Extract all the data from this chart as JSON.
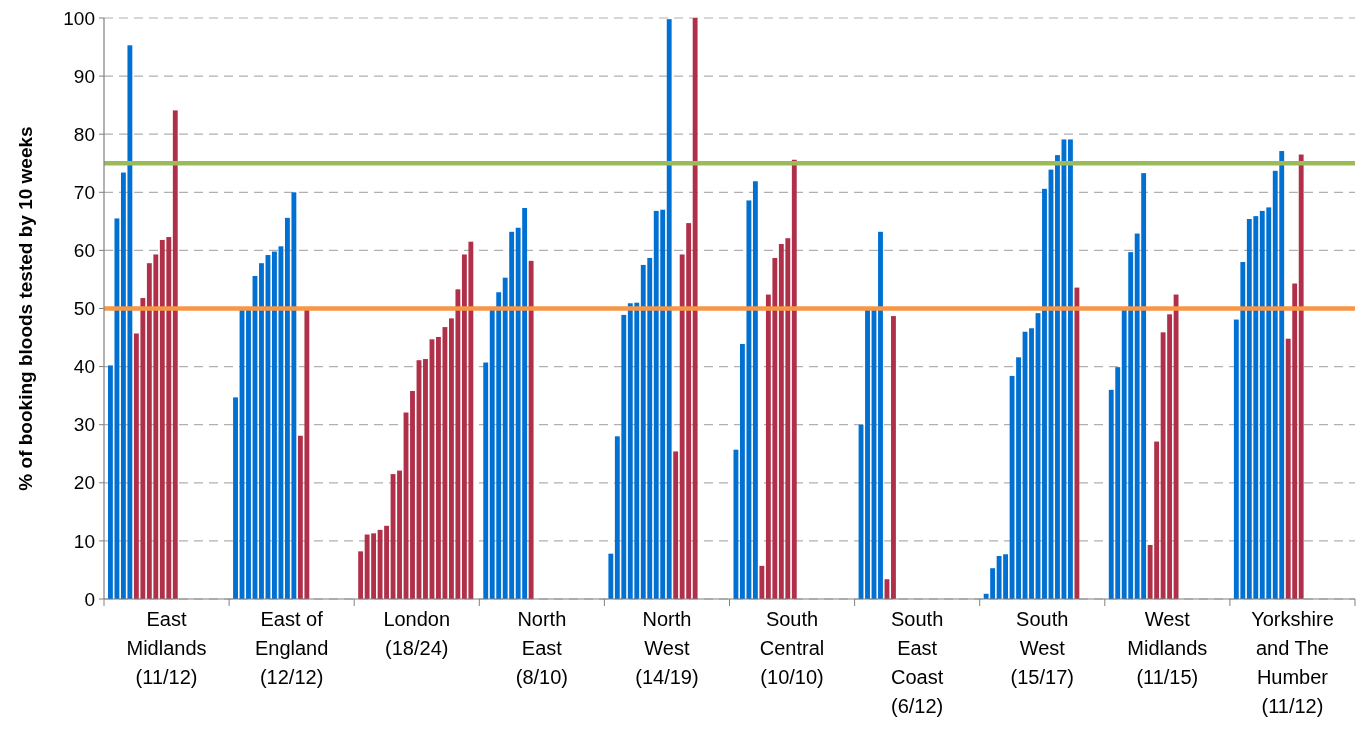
{
  "chart_data": {
    "type": "bar",
    "ylabel": "% of booking bloods tested by 10 weeks",
    "categories": [
      "East\nMidlands\n(11/12)",
      "East of\nEngland\n(12/12)",
      "London\n(18/24)",
      "North\nEast\n(8/10)",
      "North\nWest\n(14/19)",
      "South\nCentral\n(10/10)",
      "South\nEast\nCoast\n(6/12)",
      "South\nWest\n(15/17)",
      "West\nMidlands\n(11/15)",
      "Yorkshire\nand The\nHumber\n(11/12)"
    ],
    "series": [
      {
        "values": [
          40.2,
          34.7,
          8.2,
          40.7,
          7.8,
          25.7,
          30,
          0.9,
          36,
          48.1
        ],
        "colors": [
          "#0070d2",
          "#0070d2",
          "#b0304a",
          "#0070d2",
          "#0070d2",
          "#0070d2",
          "#0070d2",
          "#0070d2",
          "#0070d2",
          "#0070d2"
        ]
      },
      {
        "values": [
          65.5,
          50,
          11.1,
          50,
          28,
          43.9,
          50,
          5.3,
          39.9,
          58
        ],
        "colors": [
          "#0070d2",
          "#0070d2",
          "#b0304a",
          "#0070d2",
          "#0070d2",
          "#0070d2",
          "#0070d2",
          "#0070d2",
          "#0070d2",
          "#0070d2"
        ]
      },
      {
        "values": [
          73.4,
          50,
          11.3,
          52.8,
          48.9,
          68.6,
          50,
          7.4,
          50,
          65.4
        ],
        "colors": [
          "#0070d2",
          "#0070d2",
          "#b0304a",
          "#0070d2",
          "#0070d2",
          "#0070d2",
          "#0070d2",
          "#0070d2",
          "#0070d2",
          "#0070d2"
        ]
      },
      {
        "values": [
          95.3,
          55.6,
          11.9,
          55.3,
          50.9,
          71.9,
          63.2,
          7.7,
          59.7,
          65.9
        ],
        "colors": [
          "#0070d2",
          "#0070d2",
          "#b0304a",
          "#0070d2",
          "#0070d2",
          "#0070d2",
          "#0070d2",
          "#0070d2",
          "#0070d2",
          "#0070d2"
        ]
      },
      {
        "values": [
          45.7,
          57.8,
          12.6,
          63.2,
          51,
          5.7,
          3.4,
          38.4,
          62.9,
          66.8
        ],
        "colors": [
          "#b0304a",
          "#0070d2",
          "#b0304a",
          "#0070d2",
          "#0070d2",
          "#b0304a",
          "#b0304a",
          "#0070d2",
          "#0070d2",
          "#0070d2"
        ]
      },
      {
        "values": [
          51.8,
          59.2,
          21.5,
          63.9,
          57.5,
          52.4,
          48.7,
          41.6,
          73.3,
          67.4
        ],
        "colors": [
          "#b0304a",
          "#0070d2",
          "#b0304a",
          "#0070d2",
          "#0070d2",
          "#b0304a",
          "#b0304a",
          "#0070d2",
          "#0070d2",
          "#0070d2"
        ]
      },
      {
        "values": [
          57.8,
          59.8,
          22.1,
          67.3,
          58.7,
          58.7,
          null,
          46,
          9.3,
          73.7
        ],
        "colors": [
          "#b0304a",
          "#0070d2",
          "#b0304a",
          "#0070d2",
          "#0070d2",
          "#b0304a",
          null,
          "#0070d2",
          "#b0304a",
          "#0070d2"
        ]
      },
      {
        "values": [
          59.3,
          60.7,
          32.1,
          58.2,
          66.8,
          61.1,
          null,
          46.6,
          27.1,
          77.1
        ],
        "colors": [
          "#b0304a",
          "#0070d2",
          "#b0304a",
          "#b0304a",
          "#0070d2",
          "#b0304a",
          null,
          "#0070d2",
          "#b0304a",
          "#0070d2"
        ]
      },
      {
        "values": [
          61.8,
          65.6,
          35.8,
          null,
          67,
          62.1,
          null,
          49.2,
          45.9,
          44.8
        ],
        "colors": [
          "#b0304a",
          "#0070d2",
          "#b0304a",
          null,
          "#0070d2",
          "#b0304a",
          null,
          "#0070d2",
          "#b0304a",
          "#b0304a"
        ]
      },
      {
        "values": [
          62.3,
          70,
          41.1,
          null,
          99.8,
          75.6,
          null,
          70.6,
          49,
          54.3
        ],
        "colors": [
          "#b0304a",
          "#0070d2",
          "#b0304a",
          null,
          "#0070d2",
          "#b0304a",
          null,
          "#0070d2",
          "#b0304a",
          "#b0304a"
        ]
      },
      {
        "values": [
          84.1,
          28.1,
          41.3,
          null,
          25.4,
          null,
          null,
          73.9,
          52.4,
          76.5
        ],
        "colors": [
          "#b0304a",
          "#b0304a",
          "#b0304a",
          null,
          "#b0304a",
          null,
          null,
          "#0070d2",
          "#b0304a",
          "#b0304a"
        ]
      },
      {
        "values": [
          null,
          50,
          44.7,
          null,
          59.3,
          null,
          null,
          76.4,
          null,
          null
        ],
        "colors": [
          null,
          "#b0304a",
          "#b0304a",
          null,
          "#b0304a",
          null,
          null,
          "#0070d2",
          null,
          null
        ]
      },
      {
        "values": [
          null,
          null,
          45.1,
          null,
          64.7,
          null,
          null,
          79.1,
          null,
          null
        ],
        "colors": [
          null,
          null,
          "#b0304a",
          null,
          "#b0304a",
          null,
          null,
          "#0070d2",
          null,
          null
        ]
      },
      {
        "values": [
          null,
          null,
          46.8,
          null,
          100,
          null,
          null,
          79.1,
          null,
          null
        ],
        "colors": [
          null,
          null,
          "#b0304a",
          null,
          "#b0304a",
          null,
          null,
          "#0070d2",
          null,
          null
        ]
      },
      {
        "values": [
          null,
          null,
          48.3,
          null,
          null,
          null,
          null,
          53.6,
          null,
          null
        ],
        "colors": [
          null,
          null,
          "#b0304a",
          null,
          null,
          null,
          null,
          "#b0304a",
          null,
          null
        ]
      },
      {
        "values": [
          null,
          null,
          53.3,
          null,
          null,
          null,
          null,
          null,
          null,
          null
        ],
        "colors": [
          null,
          null,
          "#b0304a",
          null,
          null,
          null,
          null,
          null,
          null,
          null
        ]
      },
      {
        "values": [
          null,
          null,
          59.3,
          null,
          null,
          null,
          null,
          null,
          null,
          null
        ],
        "colors": [
          null,
          null,
          "#b0304a",
          null,
          null,
          null,
          null,
          null,
          null,
          null
        ]
      },
      {
        "values": [
          null,
          null,
          61.5,
          null,
          null,
          null,
          null,
          null,
          null,
          null
        ],
        "colors": [
          null,
          null,
          "#b0304a",
          null,
          null,
          null,
          null,
          null,
          null,
          null
        ]
      }
    ],
    "ylim": [
      0,
      100
    ],
    "yticks": [
      0,
      10,
      20,
      30,
      40,
      50,
      60,
      70,
      80,
      90,
      100
    ],
    "grid": "y",
    "ref_lines": [
      {
        "axis": "y",
        "value": 75,
        "color": "#9bbb59"
      },
      {
        "axis": "y",
        "value": 50,
        "color": "#f79646"
      }
    ]
  }
}
